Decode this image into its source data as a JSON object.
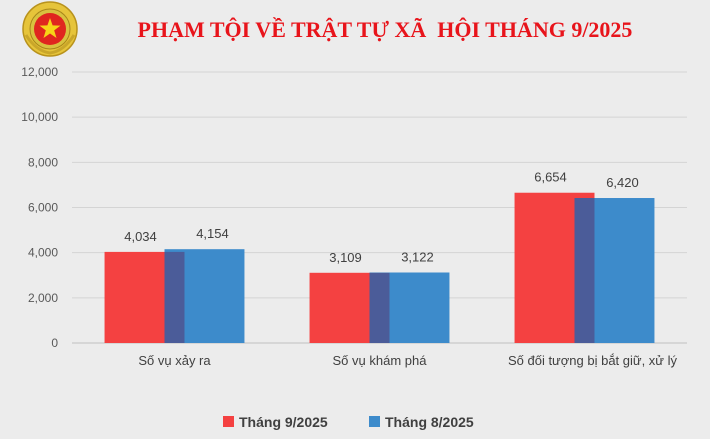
{
  "colors": {
    "series1": "#f44141",
    "series2": "#3d8bcb",
    "overlap": "#4b5c99",
    "title": "#e8141b",
    "grid": "#d4d4d4",
    "background": "#ececec"
  },
  "emblem": {
    "icon": "police-emblem-icon"
  },
  "chart_data": {
    "type": "bar",
    "title": "PHẠM TỘI VỀ TRẬT TỰ XÃ  HỘI THÁNG 9/2025",
    "categories": [
      "Số vụ xảy ra",
      "Số vụ khám phá",
      "Số đối tượng bị bắt giữ, xử lý"
    ],
    "series": [
      {
        "name": "Tháng 9/2025",
        "values": [
          4034,
          3109,
          6654
        ],
        "labels": [
          "4,034",
          "3,109",
          "6,654"
        ]
      },
      {
        "name": "Tháng 8/2025",
        "values": [
          4154,
          3122,
          6420
        ],
        "labels": [
          "4,154",
          "3,122",
          "6,420"
        ]
      }
    ],
    "ylim": [
      0,
      12000
    ],
    "yticks": [
      "0",
      "2,000",
      "4,000",
      "6,000",
      "8,000",
      "10,000",
      "12,000"
    ],
    "grid": true,
    "legend": "bottom"
  }
}
